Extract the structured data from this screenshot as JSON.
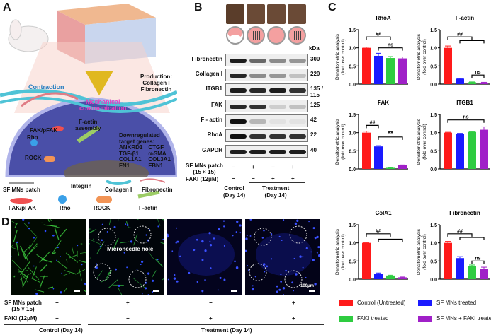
{
  "panels": {
    "a": "A",
    "b": "B",
    "c": "C",
    "d": "D"
  },
  "panel_a": {
    "contraction": "Contraction",
    "production": [
      "Production:",
      "Collagen I",
      "Fibronectin"
    ],
    "mechanical": [
      "Mechanical",
      "communication"
    ],
    "factin_assembly": [
      "F-actin",
      "assembly"
    ],
    "fak": "FAK/pFAK",
    "rho": "Rho",
    "rock": "ROCK",
    "downregulated": [
      "Downregulated",
      "target genes:"
    ],
    "genes_left": [
      "ANKRD1",
      "TGF-β1",
      "COL1A1",
      "FN1"
    ],
    "genes_right": [
      "CTGF",
      "α-SMA",
      "COL3A1",
      "FBN1"
    ],
    "legend": [
      "SF MNs patch",
      "Integrin",
      "Collagen I",
      "Fibronectin",
      "FAK/pFAK",
      "Rho",
      "ROCK",
      "F-actin"
    ],
    "colors": {
      "collagen": "#4fc3d6",
      "fibronectin": "#e07c85",
      "fak": "#ef4f4f",
      "rho": "#3aa0e8",
      "rock": "#f29455",
      "factin": "#9ccc65",
      "cell": "#4a4fa8"
    }
  },
  "panel_b": {
    "kda_header": "kDa",
    "rows": [
      {
        "name": "Fibronectin",
        "kda": "300",
        "intensity": [
          0.95,
          0.6,
          0.45,
          0.4
        ]
      },
      {
        "name": "Collagen I",
        "kda": "220",
        "intensity": [
          0.9,
          0.45,
          0.4,
          0.2
        ]
      },
      {
        "name": "ITGB1",
        "kda": "135 / 115",
        "intensity": [
          0.95,
          0.9,
          0.95,
          0.85
        ]
      },
      {
        "name": "FAK",
        "kda": "125",
        "intensity": [
          0.9,
          0.85,
          0.15,
          0.2
        ]
      },
      {
        "name": "F - actin",
        "kda": "42",
        "intensity": [
          1.0,
          0.25,
          0.05,
          0.05
        ]
      },
      {
        "name": "RhoA",
        "kda": "22",
        "intensity": [
          1.0,
          0.85,
          0.85,
          0.85
        ]
      },
      {
        "name": "GAPDH",
        "kda": "40",
        "intensity": [
          0.95,
          0.95,
          0.95,
          0.95
        ]
      }
    ],
    "sf_label": [
      "SF MNs patch",
      "(15 × 15)"
    ],
    "sf_values": [
      "−",
      "+",
      "−",
      "+"
    ],
    "faki_label": "FAKI  (12μM)",
    "faki_values": [
      "−",
      "−",
      "+",
      "+"
    ],
    "control_label": [
      "Control",
      "(Day 14)"
    ],
    "treatment_label": [
      "Treatment",
      "(Day 14)"
    ]
  },
  "chart_data": [
    {
      "type": "bar",
      "title": "RhoA",
      "ylabel": "Densitometric analysis\n(fold over control)",
      "ylim": [
        0,
        1.5
      ],
      "yticks": [
        "0.0",
        "0.5",
        "1.0",
        "1.5"
      ],
      "values": [
        1.0,
        0.78,
        0.72,
        0.71
      ],
      "errors": [
        0.02,
        0.07,
        0.04,
        0.04
      ],
      "annotations": [
        {
          "label": "##",
          "a": 0,
          "b": 2,
          "y": 1.3
        },
        {
          "label": "ns",
          "a": 1,
          "b": 3,
          "y": 1.0
        }
      ]
    },
    {
      "type": "bar",
      "title": "F-actin",
      "ylabel": "Densitometric analysis\n(fold over control)",
      "ylim": [
        0,
        1.5
      ],
      "yticks": [
        "0.0",
        "0.5",
        "1.0",
        "1.5"
      ],
      "values": [
        1.0,
        0.15,
        0.05,
        0.04
      ],
      "errors": [
        0.05,
        0.01,
        0.01,
        0.01
      ],
      "annotations": [
        {
          "label": "##",
          "a": 0,
          "b": 2,
          "y": 1.3
        },
        {
          "label": "",
          "a": 1,
          "b": 3,
          "y": 1.2
        },
        {
          "label": "ns",
          "a": 2,
          "b": 3,
          "y": 0.25
        }
      ]
    },
    {
      "type": "bar",
      "title": "FAK",
      "ylabel": "Densitometric analysis\n(fold over control)",
      "ylim": [
        0,
        1.5
      ],
      "yticks": [
        "0.0",
        "0.5",
        "1.0",
        "1.5"
      ],
      "values": [
        1.0,
        0.62,
        0.03,
        0.1
      ],
      "errors": [
        0.04,
        0.02,
        0.01,
        0.01
      ],
      "annotations": [
        {
          "label": "##",
          "a": 0,
          "b": 1,
          "y": 1.2
        },
        {
          "label": "**",
          "a": 1,
          "b": 3,
          "y": 0.88
        }
      ]
    },
    {
      "type": "bar",
      "title": "ITGB1",
      "ylabel": "Densitometric analysis\n(fold over control)",
      "ylim": [
        0,
        1.5
      ],
      "yticks": [
        "0.0",
        "0.5",
        "1.0",
        "1.5"
      ],
      "values": [
        1.0,
        0.97,
        1.02,
        1.08
      ],
      "errors": [
        0.01,
        0.01,
        0.01,
        0.08
      ],
      "annotations": [
        {
          "label": "ns",
          "a": 0,
          "b": 3,
          "y": 1.35
        }
      ]
    },
    {
      "type": "bar",
      "title": "ColA1",
      "ylabel": "Densitometric analysis\n(fold over control)",
      "ylim": [
        0,
        1.5
      ],
      "yticks": [
        "0.0",
        "0.5",
        "1.0",
        "1.5"
      ],
      "values": [
        1.0,
        0.15,
        0.1,
        0.05
      ],
      "errors": [
        0.01,
        0.02,
        0.01,
        0.01
      ],
      "annotations": [
        {
          "label": "##",
          "a": 0,
          "b": 2,
          "y": 1.25
        },
        {
          "label": "",
          "a": 1,
          "b": 3,
          "y": 1.1
        }
      ]
    },
    {
      "type": "bar",
      "title": "Fibronectin",
      "ylabel": "Densitometric analysis\n(fold over control)",
      "ylim": [
        0,
        1.5
      ],
      "yticks": [
        "0.0",
        "0.5",
        "1.0",
        "1.5"
      ],
      "values": [
        1.0,
        0.58,
        0.36,
        0.28
      ],
      "errors": [
        0.04,
        0.04,
        0.03,
        0.05
      ],
      "annotations": [
        {
          "label": "##",
          "a": 0,
          "b": 2,
          "y": 1.25
        },
        {
          "label": "",
          "a": 1,
          "b": 3,
          "y": 1.15
        },
        {
          "label": "ns",
          "a": 2,
          "b": 3,
          "y": 0.5
        }
      ]
    }
  ],
  "legend": [
    {
      "label": "Control (Untreated)",
      "color": "#ff1a1a"
    },
    {
      "label": "SF MNs treated",
      "color": "#1a1aff"
    },
    {
      "label": "FAKI treated",
      "color": "#2ecc40"
    },
    {
      "label": "SF MNs + FAKI treated",
      "color": "#a020c8"
    }
  ],
  "panel_d": {
    "hole_label": "Microneedle hole",
    "scale_label": "100μm",
    "sf_label": [
      "SF MNs patch",
      "(15 × 15)"
    ],
    "sf_values": [
      "−",
      "+",
      "−",
      "+"
    ],
    "faki_label": "FAKI  (12μM)",
    "faki_values": [
      "−",
      "−",
      "+",
      "+"
    ],
    "control_label": "Control (Day 14)",
    "treatment_label": "Treatment (Day 14)"
  }
}
